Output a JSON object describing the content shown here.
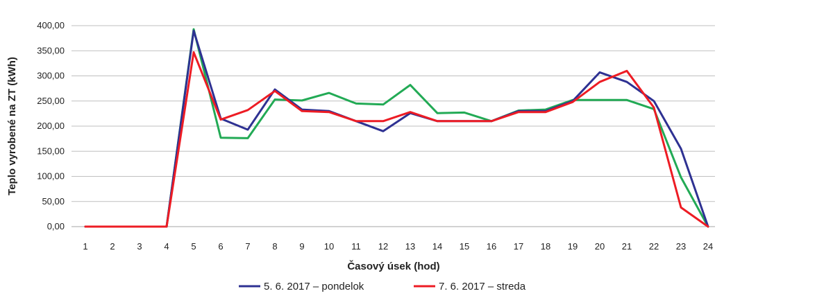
{
  "chart_data": {
    "type": "line",
    "title": "",
    "xlabel": "Časový úsek (hod)",
    "ylabel": "Teplo vyrobené na ZT (kWh)",
    "x": [
      1,
      2,
      3,
      4,
      5,
      6,
      7,
      8,
      9,
      10,
      11,
      12,
      13,
      14,
      15,
      16,
      17,
      18,
      19,
      20,
      21,
      22,
      23,
      24
    ],
    "x_tick_labels": [
      "1",
      "2",
      "3",
      "4",
      "5",
      "6",
      "7",
      "8",
      "9",
      "10",
      "11",
      "12",
      "13",
      "14",
      "15",
      "16",
      "17",
      "18",
      "19",
      "20",
      "21",
      "22",
      "23",
      "24"
    ],
    "ylim": [
      0,
      400
    ],
    "y_ticks": [
      0,
      50,
      100,
      150,
      200,
      250,
      300,
      350,
      400
    ],
    "y_tick_labels": [
      "0,00",
      "50,00",
      "100,00",
      "150,00",
      "200,00",
      "250,00",
      "300,00",
      "350,00",
      "400,00"
    ],
    "grid": true,
    "legend_position": "bottom",
    "series": [
      {
        "name": "5. 6. 2017 – pondelok",
        "color": "#2e3192",
        "values": [
          0,
          0,
          0,
          0,
          390,
          215,
          193,
          273,
          233,
          230,
          210,
          190,
          226,
          210,
          210,
          210,
          230,
          230,
          250,
          307,
          288,
          250,
          155,
          0
        ]
      },
      {
        "name": "7. 6. 2017 – streda",
        "color": "#ed1c24",
        "values": [
          0,
          0,
          0,
          0,
          347,
          213,
          232,
          270,
          230,
          228,
          210,
          210,
          228,
          210,
          210,
          210,
          228,
          228,
          248,
          288,
          310,
          237,
          38,
          0
        ]
      },
      {
        "name": "",
        "color": "#22aa55",
        "values": [
          0,
          0,
          0,
          0,
          393,
          177,
          176,
          253,
          251,
          266,
          245,
          243,
          282,
          226,
          227,
          210,
          231,
          233,
          252,
          252,
          252,
          234,
          98,
          0
        ]
      }
    ]
  }
}
